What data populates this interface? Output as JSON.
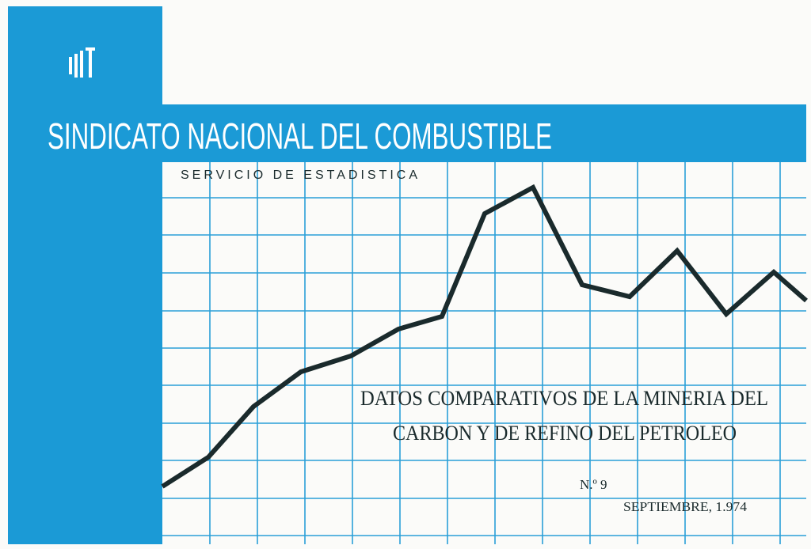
{
  "header": {
    "title": "SINDICATO NACIONAL DEL COMBUSTIBLE",
    "subtitle": "SERVICIO DE ESTADISTICA"
  },
  "document": {
    "heading_lines": [
      "DATOS COMPARATIVOS DE LA MINERIA DEL",
      "CARBON Y DE REFINO DEL PETROLEO"
    ],
    "issue": "N.º 9",
    "date": "SEPTIEMBRE, 1.974"
  }
}
